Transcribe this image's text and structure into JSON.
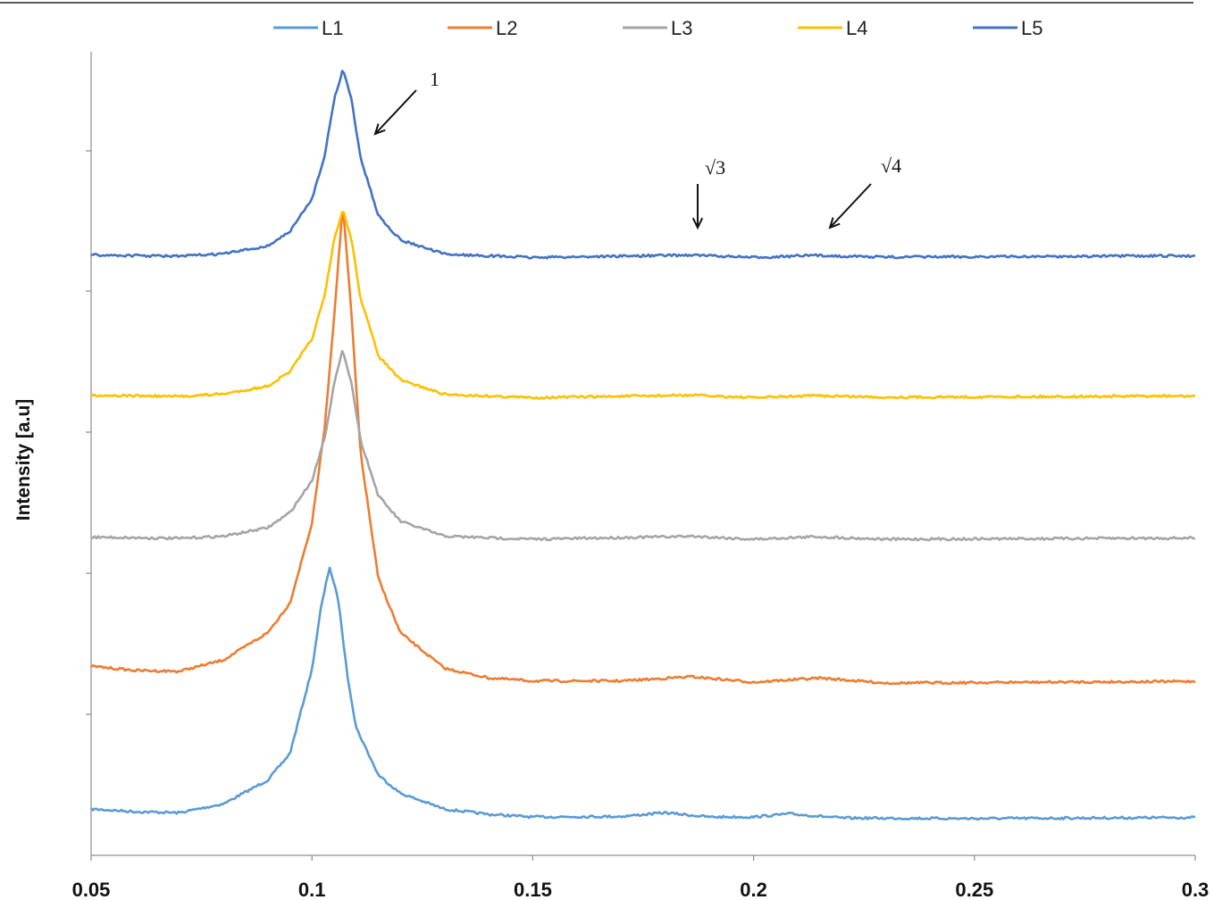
{
  "chart_data": {
    "type": "line",
    "title": "",
    "xlabel": "",
    "ylabel": "Intensity [a.u]",
    "xlim": [
      0.05,
      0.3
    ],
    "x_ticks": [
      "0.05",
      "0.1",
      "0.15",
      "0.2",
      "0.25",
      "0.3"
    ],
    "y_tick_labels": "none",
    "grid": false,
    "legend_position": "top",
    "colors": {
      "L1": "#5B9BD5",
      "L2": "#ED7D31",
      "L3": "#A5A5A5",
      "L4": "#FFC000",
      "L5": "#4472C4"
    },
    "series": [
      {
        "name": "L1",
        "x": [
          0.05,
          0.06,
          0.07,
          0.08,
          0.09,
          0.095,
          0.1,
          0.102,
          0.104,
          0.106,
          0.108,
          0.11,
          0.115,
          0.12,
          0.13,
          0.14,
          0.15,
          0.17,
          0.18,
          0.19,
          0.2,
          0.208,
          0.22,
          0.25,
          0.3
        ],
        "y": [
          0.15,
          0.1,
          0.08,
          0.25,
          0.7,
          1.2,
          2.8,
          3.95,
          4.75,
          4.1,
          2.7,
          1.7,
          0.8,
          0.45,
          0.15,
          0.05,
          0.0,
          0.01,
          0.08,
          0.0,
          0.0,
          0.06,
          -0.02,
          -0.03,
          -0.01
        ]
      },
      {
        "name": "L2",
        "x": [
          0.05,
          0.06,
          0.07,
          0.08,
          0.09,
          0.095,
          0.1,
          0.103,
          0.105,
          0.107,
          0.109,
          0.111,
          0.115,
          0.12,
          0.13,
          0.14,
          0.15,
          0.17,
          0.186,
          0.2,
          0.215,
          0.23,
          0.3
        ],
        "y": [
          0.4,
          0.3,
          0.28,
          0.55,
          1.2,
          1.9,
          3.8,
          6.2,
          8.7,
          11.4,
          8.7,
          5.5,
          2.5,
          1.2,
          0.35,
          0.12,
          0.05,
          0.05,
          0.15,
          0.02,
          0.12,
          0.0,
          0.04
        ]
      },
      {
        "name": "L3",
        "x": [
          0.05,
          0.07,
          0.08,
          0.09,
          0.095,
          0.1,
          0.103,
          0.105,
          0.107,
          0.109,
          0.111,
          0.115,
          0.12,
          0.13,
          0.15,
          0.186,
          0.2,
          0.214,
          0.23,
          0.3
        ],
        "y": [
          0.03,
          0.0,
          0.05,
          0.25,
          0.6,
          1.35,
          2.4,
          3.6,
          4.4,
          3.6,
          2.3,
          1.0,
          0.4,
          0.05,
          -0.02,
          0.05,
          -0.02,
          0.04,
          -0.02,
          0.01
        ]
      },
      {
        "name": "L4",
        "x": [
          0.05,
          0.07,
          0.08,
          0.09,
          0.095,
          0.1,
          0.103,
          0.105,
          0.107,
          0.109,
          0.111,
          0.115,
          0.12,
          0.13,
          0.15,
          0.186,
          0.2,
          0.214,
          0.23,
          0.3
        ],
        "y": [
          0.03,
          0.0,
          0.06,
          0.25,
          0.6,
          1.4,
          2.5,
          3.8,
          4.55,
          3.8,
          2.4,
          1.0,
          0.4,
          0.05,
          -0.03,
          0.03,
          -0.03,
          0.02,
          -0.02,
          0.01
        ]
      },
      {
        "name": "L5",
        "x": [
          0.05,
          0.07,
          0.08,
          0.09,
          0.095,
          0.1,
          0.103,
          0.105,
          0.107,
          0.109,
          0.111,
          0.115,
          0.12,
          0.13,
          0.15,
          0.186,
          0.2,
          0.214,
          0.23,
          0.3
        ],
        "y": [
          0.03,
          0.0,
          0.06,
          0.25,
          0.6,
          1.4,
          2.5,
          3.8,
          4.55,
          3.8,
          2.4,
          1.0,
          0.4,
          0.05,
          -0.03,
          0.03,
          -0.03,
          0.02,
          -0.02,
          0.01
        ]
      }
    ],
    "annotations": [
      {
        "label": "1",
        "target": "primary peak"
      },
      {
        "label": "√3",
        "target": "second-order peak"
      },
      {
        "label": "√4",
        "target": "third-order peak"
      }
    ]
  }
}
